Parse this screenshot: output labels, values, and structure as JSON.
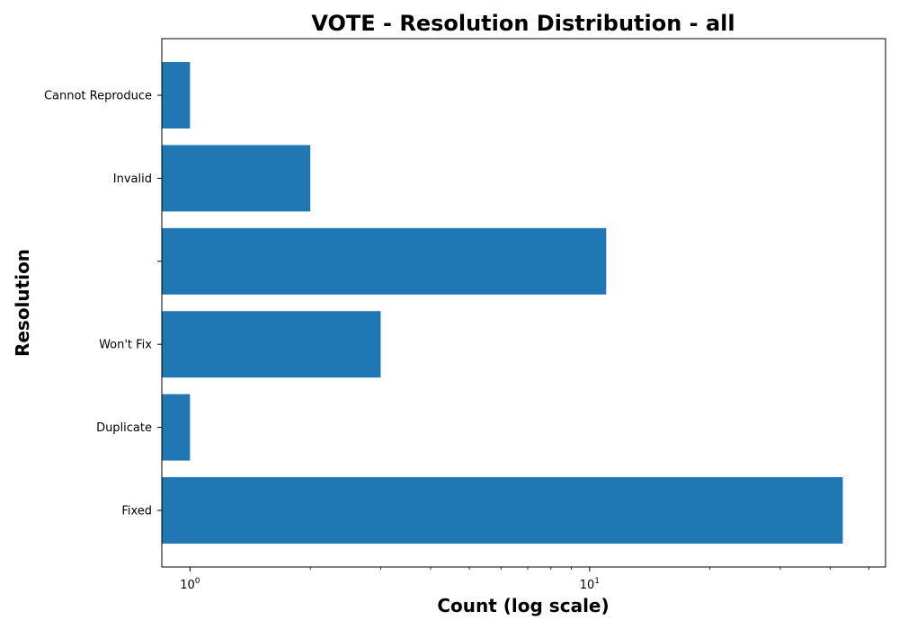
{
  "chart_data": {
    "type": "bar",
    "orientation": "horizontal",
    "title": "VOTE - Resolution Distribution - all",
    "xlabel": "Count (log scale)",
    "ylabel": "Resolution",
    "x_scale": "log",
    "xlim": [
      0.85,
      55
    ],
    "x_major_ticks": [
      {
        "value": 1,
        "base": "10",
        "exp": "0"
      },
      {
        "value": 10,
        "base": "10",
        "exp": "1"
      }
    ],
    "categories": [
      "Cannot Reproduce",
      "Invalid",
      "",
      "Won't Fix",
      "Duplicate",
      "Fixed"
    ],
    "values": [
      1,
      2,
      11,
      3,
      1,
      43
    ],
    "bar_color": "#1f77b4",
    "grid": false,
    "legend": "none"
  }
}
